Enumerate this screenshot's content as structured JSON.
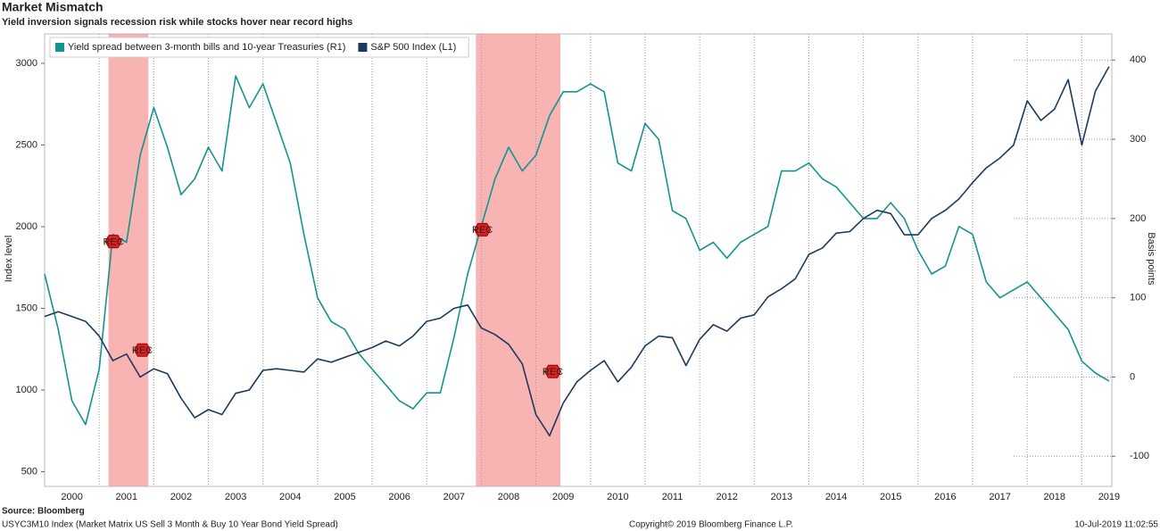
{
  "chart_data": {
    "type": "line",
    "title": "Market Mismatch",
    "subtitle": "Yield inversion signals recession risk while stocks hover near record highs",
    "y_label": "Index level",
    "y2_label": "Basis points",
    "source": "Source: Bloomberg",
    "footnote": "USYC3M10 Index (Market Matrix US Sell 3 Month & Buy 10 Year Bond Yield Spread)",
    "copyright": "Copyright© 2019 Bloomberg Finance L.P.",
    "timestamp": "10-Jul-2019 11:02:55",
    "legend": "top-left",
    "grid": true,
    "x": [
      2000,
      2000.25,
      2000.5,
      2000.75,
      2001,
      2001.25,
      2001.5,
      2001.75,
      2002,
      2002.25,
      2002.5,
      2002.75,
      2003,
      2003.25,
      2003.5,
      2003.75,
      2004,
      2004.25,
      2004.5,
      2004.75,
      2005,
      2005.25,
      2005.5,
      2005.75,
      2006,
      2006.25,
      2006.5,
      2006.75,
      2007,
      2007.25,
      2007.5,
      2007.75,
      2008,
      2008.25,
      2008.5,
      2008.75,
      2009,
      2009.25,
      2009.5,
      2009.75,
      2010,
      2010.25,
      2010.5,
      2010.75,
      2011,
      2011.25,
      2011.5,
      2011.75,
      2012,
      2012.25,
      2012.5,
      2012.75,
      2013,
      2013.25,
      2013.5,
      2013.75,
      2014,
      2014.25,
      2014.5,
      2014.75,
      2015,
      2015.25,
      2015.5,
      2015.75,
      2016,
      2016.25,
      2016.5,
      2016.75,
      2017,
      2017.25,
      2017.5,
      2017.75,
      2018,
      2018.25,
      2018.5,
      2018.75,
      2019,
      2019.25,
      2019.5
    ],
    "xlim": [
      2000,
      2019.55
    ],
    "xticks": [
      {
        "value": 2000,
        "label": "2000"
      },
      {
        "value": 2001,
        "label": "2001"
      },
      {
        "value": 2002,
        "label": "2002"
      },
      {
        "value": 2003,
        "label": "2003"
      },
      {
        "value": 2004,
        "label": "2004"
      },
      {
        "value": 2005,
        "label": "2005"
      },
      {
        "value": 2006,
        "label": "2006"
      },
      {
        "value": 2007,
        "label": "2007"
      },
      {
        "value": 2008,
        "label": "2008"
      },
      {
        "value": 2009,
        "label": "2009"
      },
      {
        "value": 2010,
        "label": "2010"
      },
      {
        "value": 2011,
        "label": "2011"
      },
      {
        "value": 2012,
        "label": "2012"
      },
      {
        "value": 2013,
        "label": "2013"
      },
      {
        "value": 2014,
        "label": "2014"
      },
      {
        "value": 2015,
        "label": "2015"
      },
      {
        "value": 2016,
        "label": "2016"
      },
      {
        "value": 2017,
        "label": "2017"
      },
      {
        "value": 2018,
        "label": "2018"
      },
      {
        "value": 2019,
        "label": "2019"
      }
    ],
    "ylim": [
      410,
      3180
    ],
    "yticks": [
      500,
      1000,
      1500,
      2000,
      2500,
      3000
    ],
    "y2lim": [
      -138,
      433
    ],
    "y2ticks": [
      -100,
      0,
      100,
      200,
      300,
      400
    ],
    "recessions": [
      [
        2001.17,
        2001.9
      ],
      [
        2007.9,
        2009.45
      ]
    ],
    "recession_color": "#f59a9a",
    "annotations": [
      {
        "text": "REC",
        "x": 2001.26,
        "y": 171
      },
      {
        "text": "REC",
        "x": 2001.79,
        "y": 34
      },
      {
        "text": "REC",
        "x": 2008.02,
        "y": 186
      },
      {
        "text": "REC",
        "x": 2009.31,
        "y": 7
      }
    ],
    "series": [
      {
        "name": "Yield spread between 3-month bills and 10-year Treasuries (R1)",
        "color": "#13948f",
        "axis": "y2",
        "values": [
          130,
          60,
          -30,
          -60,
          10,
          180,
          170,
          280,
          340,
          290,
          230,
          250,
          290,
          260,
          380,
          340,
          370,
          320,
          270,
          180,
          100,
          70,
          60,
          30,
          10,
          -10,
          -30,
          -40,
          -20,
          -20,
          50,
          130,
          190,
          250,
          290,
          260,
          280,
          330,
          360,
          360,
          370,
          360,
          270,
          260,
          320,
          300,
          210,
          200,
          160,
          170,
          150,
          170,
          180,
          190,
          260,
          260,
          270,
          250,
          240,
          220,
          200,
          200,
          220,
          200,
          160,
          130,
          140,
          190,
          180,
          120,
          100,
          110,
          120,
          100,
          80,
          60,
          20,
          5,
          -5
        ]
      },
      {
        "name": "S&P 500 Index  (L1)",
        "color": "#1b3a5e",
        "values": [
          1450,
          1480,
          1450,
          1420,
          1330,
          1180,
          1220,
          1080,
          1130,
          1100,
          950,
          830,
          880,
          850,
          980,
          1000,
          1120,
          1130,
          1120,
          1110,
          1190,
          1170,
          1200,
          1230,
          1260,
          1300,
          1270,
          1330,
          1420,
          1440,
          1500,
          1520,
          1380,
          1340,
          1280,
          1160,
          850,
          720,
          920,
          1050,
          1120,
          1180,
          1050,
          1140,
          1270,
          1330,
          1320,
          1150,
          1310,
          1400,
          1360,
          1440,
          1460,
          1570,
          1620,
          1680,
          1830,
          1870,
          1960,
          1970,
          2050,
          2100,
          2080,
          1950,
          1950,
          2050,
          2100,
          2170,
          2270,
          2360,
          2420,
          2500,
          2770,
          2650,
          2720,
          2900,
          2500,
          2830,
          2980
        ]
      }
    ]
  }
}
